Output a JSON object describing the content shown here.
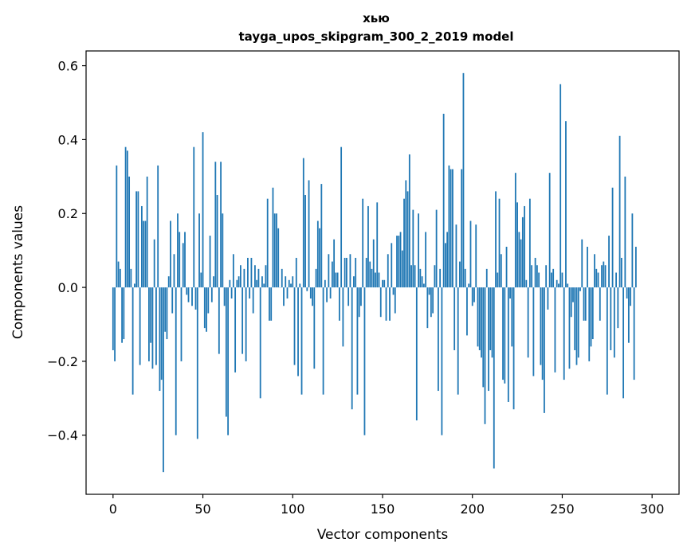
{
  "chart_data": {
    "type": "bar",
    "title": [
      "хью",
      "tayga_upos_skipgram_300_2_2019 model"
    ],
    "xlabel": "Vector components",
    "ylabel": "Components values",
    "xlim": [
      -15,
      315
    ],
    "ylim": [
      -0.56,
      0.64
    ],
    "xticks": [
      0,
      50,
      100,
      150,
      200,
      250,
      300
    ],
    "xtick_labels": [
      "0",
      "50",
      "100",
      "150",
      "200",
      "250",
      "300"
    ],
    "yticks": [
      -0.4,
      -0.2,
      0.0,
      0.2,
      0.4,
      0.6
    ],
    "ytick_labels": [
      "−0.4",
      "−0.2",
      "0.0",
      "0.2",
      "0.4",
      "0.6"
    ],
    "color": "#1f77b4",
    "grid": false,
    "values": [
      -0.17,
      -0.2,
      0.33,
      0.07,
      0.05,
      -0.15,
      -0.14,
      0.38,
      0.37,
      0.3,
      0.05,
      -0.29,
      0.01,
      0.26,
      0.26,
      -0.21,
      0.22,
      0.18,
      0.18,
      0.3,
      -0.2,
      -0.15,
      -0.22,
      0.13,
      -0.21,
      0.33,
      -0.28,
      -0.25,
      -0.5,
      -0.12,
      -0.14,
      0.03,
      0.18,
      -0.07,
      0.09,
      -0.4,
      0.2,
      0.15,
      -0.2,
      0.12,
      0.15,
      -0.02,
      -0.04,
      0.0,
      -0.05,
      0.38,
      -0.06,
      -0.41,
      0.2,
      0.04,
      0.42,
      -0.11,
      -0.12,
      -0.07,
      0.14,
      -0.04,
      0.03,
      0.34,
      0.25,
      -0.18,
      0.34,
      0.2,
      -0.05,
      -0.35,
      -0.4,
      0.02,
      -0.03,
      0.09,
      -0.23,
      0.02,
      0.03,
      0.06,
      -0.18,
      0.05,
      -0.2,
      0.08,
      -0.03,
      0.08,
      -0.07,
      0.06,
      0.02,
      0.05,
      -0.3,
      0.03,
      0.01,
      0.06,
      0.24,
      -0.09,
      -0.09,
      0.27,
      0.2,
      0.2,
      0.16,
      0.0,
      0.05,
      -0.05,
      0.03,
      -0.03,
      0.02,
      0.01,
      0.03,
      -0.21,
      0.08,
      -0.24,
      0.01,
      -0.29,
      0.35,
      0.25,
      -0.01,
      0.29,
      -0.03,
      -0.05,
      -0.22,
      0.05,
      0.18,
      0.16,
      0.28,
      -0.29,
      0.02,
      -0.04,
      0.09,
      -0.03,
      0.07,
      0.13,
      0.04,
      0.04,
      -0.09,
      0.38,
      -0.16,
      0.08,
      0.08,
      -0.05,
      0.09,
      -0.33,
      0.03,
      0.08,
      -0.29,
      -0.08,
      -0.05,
      0.24,
      -0.4,
      0.08,
      0.22,
      0.07,
      0.05,
      0.13,
      0.04,
      0.23,
      0.04,
      -0.08,
      0.02,
      0.02,
      -0.09,
      0.09,
      -0.09,
      0.12,
      -0.02,
      -0.07,
      0.14,
      0.14,
      0.15,
      0.1,
      0.24,
      0.29,
      0.26,
      0.36,
      0.06,
      0.21,
      0.06,
      -0.36,
      0.2,
      0.05,
      0.03,
      0.01,
      0.15,
      -0.11,
      -0.02,
      -0.08,
      -0.07,
      0.06,
      0.21,
      -0.28,
      0.05,
      -0.4,
      0.47,
      0.12,
      0.15,
      0.33,
      0.32,
      0.32,
      -0.17,
      0.17,
      -0.29,
      0.07,
      0.32,
      0.58,
      0.05,
      -0.13,
      0.01,
      0.18,
      -0.05,
      -0.04,
      0.17,
      -0.16,
      -0.17,
      -0.19,
      -0.27,
      -0.37,
      0.05,
      -0.28,
      -0.17,
      -0.19,
      -0.49,
      0.26,
      0.04,
      0.24,
      0.09,
      -0.25,
      -0.26,
      0.11,
      -0.31,
      -0.03,
      -0.16,
      -0.33,
      0.31,
      0.23,
      0.15,
      0.13,
      0.19,
      0.22,
      0.02,
      -0.19,
      0.24,
      0.06,
      -0.24,
      0.08,
      0.06,
      0.04,
      -0.21,
      -0.25,
      -0.34,
      0.06,
      -0.06,
      0.31,
      0.04,
      0.05,
      -0.23,
      0.02,
      0.01,
      0.55,
      0.04,
      -0.25,
      0.45,
      0.01,
      -0.22,
      -0.08,
      -0.04,
      -0.17,
      -0.21,
      -0.19,
      -0.01,
      0.13,
      -0.09,
      -0.09,
      0.11,
      -0.2,
      -0.16,
      -0.14,
      0.09,
      0.05,
      0.04,
      -0.09,
      0.06,
      0.07,
      0.06,
      -0.29,
      0.14,
      -0.17,
      0.27,
      -0.19,
      0.04,
      -0.11,
      0.41,
      0.08,
      -0.3,
      0.3,
      -0.03,
      -0.15,
      -0.05,
      0.2,
      -0.25,
      0.11
    ]
  }
}
